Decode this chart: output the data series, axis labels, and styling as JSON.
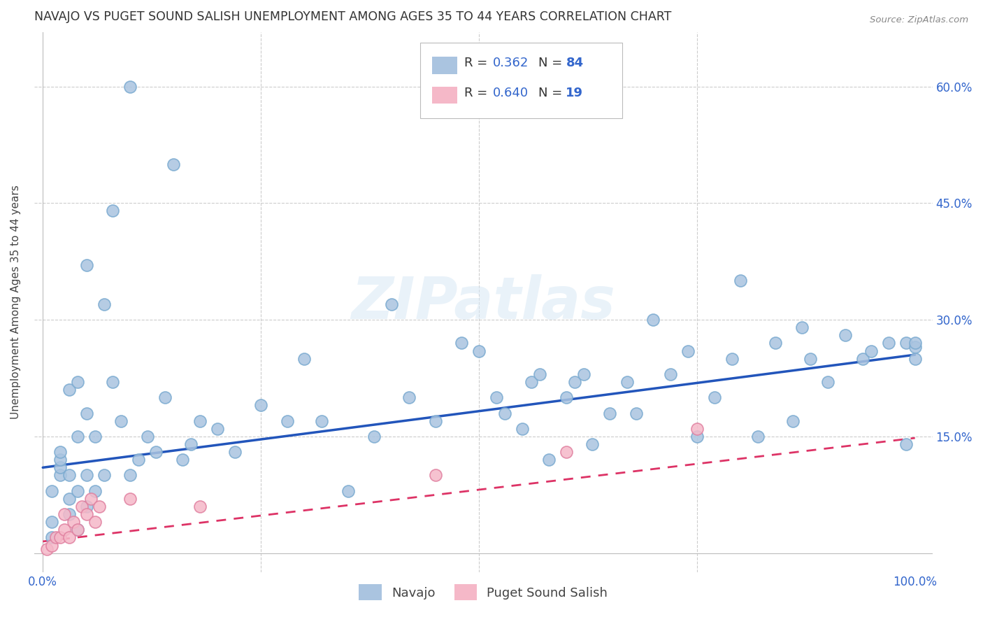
{
  "title": "NAVAJO VS PUGET SOUND SALISH UNEMPLOYMENT AMONG AGES 35 TO 44 YEARS CORRELATION CHART",
  "source": "Source: ZipAtlas.com",
  "ylabel": "Unemployment Among Ages 35 to 44 years",
  "xlim": [
    -0.01,
    1.02
  ],
  "ylim": [
    -0.025,
    0.67
  ],
  "yticks": [
    0.0,
    0.15,
    0.3,
    0.45,
    0.6
  ],
  "ytick_labels": [
    "",
    "15.0%",
    "30.0%",
    "45.0%",
    "60.0%"
  ],
  "xticks": [
    0.0,
    0.25,
    0.5,
    0.75,
    1.0
  ],
  "xtick_labels": [
    "0.0%",
    "",
    "",
    "",
    "100.0%"
  ],
  "navajo_R": 0.362,
  "navajo_N": 84,
  "puget_R": 0.64,
  "puget_N": 19,
  "navajo_color": "#aac4e0",
  "navajo_edge": "#7aaad0",
  "puget_color": "#f5b8c8",
  "puget_edge": "#e080a0",
  "navajo_line_color": "#2255bb",
  "puget_line_color": "#dd3366",
  "watermark": "ZIPatlas",
  "navajo_line_x0": 0.0,
  "navajo_line_y0": 0.11,
  "navajo_line_x1": 1.0,
  "navajo_line_y1": 0.255,
  "puget_line_x0": 0.0,
  "puget_line_y0": 0.015,
  "puget_line_x1": 1.0,
  "puget_line_y1": 0.148,
  "navajo_x": [
    0.01,
    0.01,
    0.01,
    0.02,
    0.02,
    0.02,
    0.02,
    0.03,
    0.03,
    0.03,
    0.03,
    0.04,
    0.04,
    0.04,
    0.04,
    0.05,
    0.05,
    0.05,
    0.05,
    0.06,
    0.06,
    0.07,
    0.07,
    0.08,
    0.08,
    0.09,
    0.1,
    0.1,
    0.11,
    0.12,
    0.13,
    0.14,
    0.15,
    0.16,
    0.17,
    0.18,
    0.2,
    0.22,
    0.25,
    0.28,
    0.3,
    0.32,
    0.35,
    0.38,
    0.4,
    0.42,
    0.45,
    0.48,
    0.5,
    0.52,
    0.53,
    0.55,
    0.56,
    0.57,
    0.58,
    0.6,
    0.61,
    0.62,
    0.63,
    0.65,
    0.67,
    0.68,
    0.7,
    0.72,
    0.74,
    0.75,
    0.77,
    0.79,
    0.8,
    0.82,
    0.84,
    0.86,
    0.87,
    0.88,
    0.9,
    0.92,
    0.94,
    0.95,
    0.97,
    0.99,
    0.99,
    1.0,
    1.0,
    1.0
  ],
  "navajo_y": [
    0.02,
    0.04,
    0.08,
    0.1,
    0.11,
    0.12,
    0.13,
    0.05,
    0.07,
    0.1,
    0.21,
    0.03,
    0.08,
    0.15,
    0.22,
    0.06,
    0.18,
    0.1,
    0.37,
    0.08,
    0.15,
    0.1,
    0.32,
    0.22,
    0.44,
    0.17,
    0.6,
    0.1,
    0.12,
    0.15,
    0.13,
    0.2,
    0.5,
    0.12,
    0.14,
    0.17,
    0.16,
    0.13,
    0.19,
    0.17,
    0.25,
    0.17,
    0.08,
    0.15,
    0.32,
    0.2,
    0.17,
    0.27,
    0.26,
    0.2,
    0.18,
    0.16,
    0.22,
    0.23,
    0.12,
    0.2,
    0.22,
    0.23,
    0.14,
    0.18,
    0.22,
    0.18,
    0.3,
    0.23,
    0.26,
    0.15,
    0.2,
    0.25,
    0.35,
    0.15,
    0.27,
    0.17,
    0.29,
    0.25,
    0.22,
    0.28,
    0.25,
    0.26,
    0.27,
    0.14,
    0.27,
    0.265,
    0.25,
    0.27
  ],
  "puget_x": [
    0.005,
    0.01,
    0.015,
    0.02,
    0.025,
    0.025,
    0.03,
    0.035,
    0.04,
    0.045,
    0.05,
    0.055,
    0.06,
    0.065,
    0.1,
    0.18,
    0.45,
    0.6,
    0.75
  ],
  "puget_y": [
    0.005,
    0.01,
    0.02,
    0.02,
    0.03,
    0.05,
    0.02,
    0.04,
    0.03,
    0.06,
    0.05,
    0.07,
    0.04,
    0.06,
    0.07,
    0.06,
    0.1,
    0.13,
    0.16
  ]
}
